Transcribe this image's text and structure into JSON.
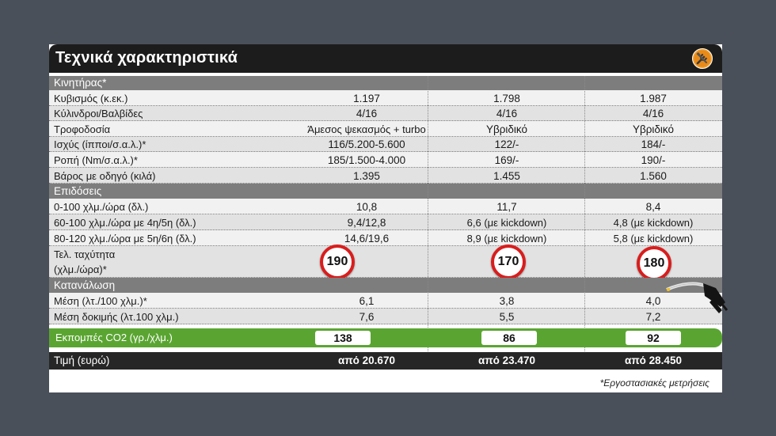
{
  "title": "Τεχνικά χαρακτηριστικά",
  "sections": {
    "engine": "Κινητήρας*",
    "performance": "Επιδόσεις",
    "consumption": "Κατανάλωση"
  },
  "rows": {
    "displacement": {
      "label": "Κυβισμός (κ.εκ.)",
      "v": [
        "1.197",
        "1.798",
        "1.987"
      ]
    },
    "cylinders": {
      "label": "Κύλινδροι/Βαλβίδες",
      "v": [
        "4/16",
        "4/16",
        "4/16"
      ]
    },
    "fuel": {
      "label": "Τροφοδοσία",
      "v": [
        "Άμεσος ψεκασμός + turbo",
        "Υβριδικό",
        "Υβριδικό"
      ]
    },
    "power": {
      "label": "Ισχύς (ίπποι/σ.α.λ.)*",
      "v": [
        "116/5.200-5.600",
        "122/-",
        "184/-"
      ]
    },
    "torque": {
      "label": "Ροπή (Nm/σ.α.λ.)*",
      "v": [
        "185/1.500-4.000",
        "169/-",
        "190/-"
      ]
    },
    "weight": {
      "label": "Βάρος με οδηγό (κιλά)",
      "v": [
        "1.395",
        "1.455",
        "1.560"
      ]
    },
    "accel": {
      "label": "0-100 χλμ./ώρα (δλ.)",
      "v": [
        "10,8",
        "11,7",
        "8,4"
      ]
    },
    "mid60": {
      "label": "60-100 χλμ./ώρα με 4η/5η (δλ.)",
      "v": [
        "9,4/12,8",
        "6,6 (με kickdown)",
        "4,8 (με kickdown)"
      ]
    },
    "mid80": {
      "label": "80-120 χλμ./ώρα με 5η/6η (δλ.)",
      "v": [
        "14,6/19,6",
        "8,9 (με kickdown)",
        "5,8 (με kickdown)"
      ]
    },
    "topspeed": {
      "label1": "Τελ. ταχύτητα",
      "label2": "(χλμ./ώρα)*",
      "v": [
        "190",
        "170",
        "180"
      ]
    },
    "avg": {
      "label": "Μέση (λτ./100 χλμ.)*",
      "v": [
        "6,1",
        "3,8",
        "4,0"
      ]
    },
    "test": {
      "label": "Μέση δοκιμής (λτ.100 χλμ.)",
      "v": [
        "7,6",
        "5,5",
        "7,2"
      ]
    }
  },
  "co2": {
    "label": "Εκπομπές CO2 (γρ./χλμ.)",
    "v": [
      "138",
      "86",
      "92"
    ]
  },
  "price": {
    "label": "Τιμή (ευρώ)",
    "v": [
      "από 20.670",
      "από 23.470",
      "από 28.450"
    ]
  },
  "footnote": "*Εργοστασιακές μετρήσεις",
  "icons": {
    "header": "tools-icon",
    "consumption": "fuel-nozzle-icon"
  },
  "colors": {
    "green": "#5aa532",
    "speed_ring": "#d91d1d",
    "section": "#7d7d7d",
    "header": "#1c1c1c"
  }
}
